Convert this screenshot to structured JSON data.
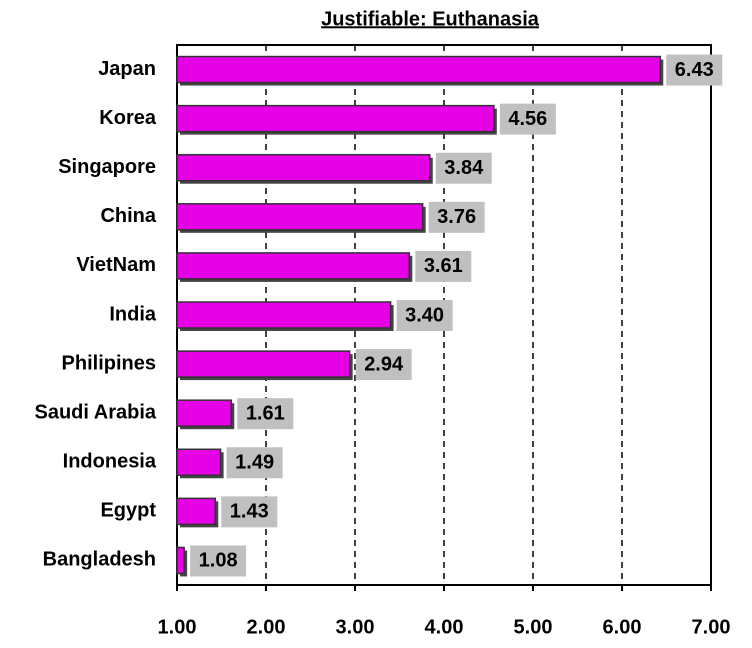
{
  "chart_data": {
    "type": "bar",
    "orientation": "horizontal",
    "title": "Justifiable: Euthanasia",
    "categories": [
      "Japan",
      "Korea",
      "Singapore",
      "China",
      "VietNam",
      "India",
      "Philipines",
      "Saudi Arabia",
      "Indonesia",
      "Egypt",
      "Bangladesh"
    ],
    "values": [
      6.43,
      4.56,
      3.84,
      3.76,
      3.61,
      3.4,
      2.94,
      1.61,
      1.49,
      1.43,
      1.08
    ],
    "value_labels": [
      "6.43",
      "4.56",
      "3.84",
      "3.76",
      "3.61",
      "3.40",
      "2.94",
      "1.61",
      "1.49",
      "1.43",
      "1.08"
    ],
    "color": "#e600e6",
    "xlim": [
      1,
      7
    ],
    "xticks": [
      {
        "value": 1,
        "label": "1.00"
      },
      {
        "value": 2,
        "label": "2.00"
      },
      {
        "value": 3,
        "label": "3.00"
      },
      {
        "value": 4,
        "label": "4.00"
      },
      {
        "value": 5,
        "label": "5.00"
      },
      {
        "value": 6,
        "label": "6.00"
      },
      {
        "value": 7,
        "label": "7.00"
      }
    ],
    "grid": true
  }
}
